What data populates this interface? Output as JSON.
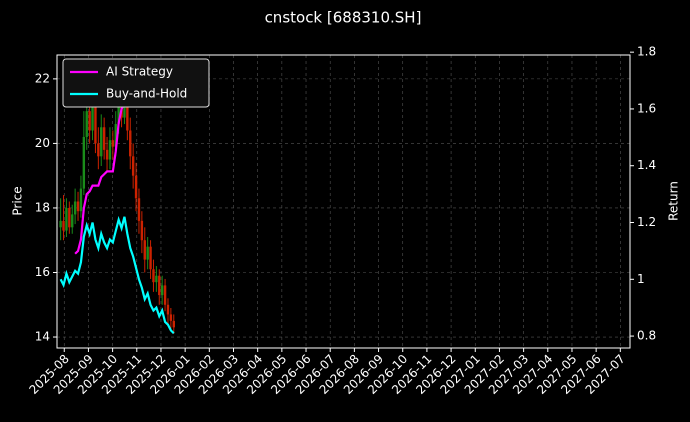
{
  "chart_data": {
    "type": "candlestick",
    "title": "cnstock [688310.SH]",
    "ylabel": "Price",
    "y2label": "Return",
    "x": [
      -0.15,
      -0.03,
      0.09,
      0.21,
      0.33,
      0.45,
      0.57,
      0.69,
      0.81,
      0.93,
      1.05,
      1.17,
      1.29,
      1.41,
      1.53,
      1.65,
      1.77,
      1.89,
      2.01,
      2.13,
      2.25,
      2.37,
      2.49,
      2.61,
      2.73,
      2.85,
      2.97,
      3.09,
      3.21,
      3.33,
      3.45,
      3.57,
      3.69,
      3.81,
      3.93,
      4.05,
      4.17,
      4.29,
      4.41,
      4.53
    ],
    "open": [
      17.4,
      17.6,
      17.3,
      18.0,
      17.4,
      17.8,
      18.2,
      17.9,
      18.6,
      20.2,
      21.0,
      20.4,
      21.2,
      20.0,
      19.6,
      20.5,
      19.8,
      19.5,
      20.1,
      19.9,
      20.6,
      21.3,
      20.8,
      21.5,
      20.4,
      19.6,
      19.0,
      18.3,
      17.6,
      17.0,
      16.4,
      16.8,
      16.1,
      15.7,
      15.9,
      15.3,
      15.6,
      15.0,
      14.7,
      14.5
    ],
    "high": [
      18.3,
      18.4,
      18.3,
      18.2,
      18.1,
      18.6,
      18.5,
      19.0,
      21.0,
      21.9,
      21.5,
      22.0,
      21.6,
      20.5,
      20.9,
      20.8,
      20.2,
      20.5,
      20.4,
      21.0,
      21.8,
      21.6,
      22.1,
      21.8,
      20.8,
      20.0,
      19.4,
      18.6,
      17.9,
      17.4,
      17.1,
      17.0,
      16.4,
      16.2,
      16.1,
      15.9,
      15.8,
      15.2,
      14.9,
      14.7
    ],
    "low": [
      17.0,
      17.0,
      17.1,
      17.2,
      17.2,
      17.5,
      17.6,
      17.7,
      18.4,
      19.8,
      20.0,
      20.1,
      19.7,
      19.2,
      19.3,
      19.5,
      19.1,
      19.2,
      19.5,
      19.6,
      20.3,
      20.5,
      20.6,
      20.1,
      19.2,
      18.6,
      17.9,
      17.2,
      16.6,
      16.0,
      16.1,
      15.8,
      15.4,
      15.4,
      15.0,
      15.0,
      14.8,
      14.4,
      14.2,
      14.1
    ],
    "close": [
      17.6,
      17.3,
      18.0,
      17.4,
      17.8,
      18.2,
      17.9,
      18.6,
      20.2,
      21.0,
      20.4,
      21.2,
      20.0,
      19.6,
      20.5,
      19.8,
      19.5,
      20.1,
      19.9,
      20.6,
      21.3,
      20.8,
      21.5,
      20.4,
      19.6,
      19.0,
      18.3,
      17.6,
      17.0,
      16.4,
      16.8,
      16.1,
      15.7,
      15.9,
      15.3,
      15.6,
      15.0,
      14.7,
      14.5,
      14.3
    ],
    "up_color": "#1a8c1a",
    "down_color": "#cc2200",
    "series": [
      {
        "name": "AI Strategy",
        "color": "#ff00ff",
        "axis": "y2",
        "values": [
          null,
          null,
          null,
          null,
          null,
          1.09,
          1.1,
          1.14,
          1.25,
          1.3,
          1.31,
          1.33,
          1.33,
          1.33,
          1.36,
          1.37,
          1.38,
          1.38,
          1.38,
          1.45,
          1.55,
          1.6,
          1.62,
          1.62,
          1.62,
          1.63,
          1.65,
          1.68,
          1.7,
          1.7,
          1.7,
          null,
          null,
          null,
          null,
          null,
          null,
          null,
          null,
          null
        ]
      },
      {
        "name": "Buy-and-Hold",
        "color": "#00ffff",
        "axis": "y2",
        "values": [
          1.0,
          0.98,
          1.02,
          0.99,
          1.01,
          1.03,
          1.02,
          1.06,
          1.15,
          1.19,
          1.16,
          1.2,
          1.14,
          1.11,
          1.16,
          1.13,
          1.11,
          1.14,
          1.13,
          1.17,
          1.21,
          1.18,
          1.22,
          1.16,
          1.11,
          1.08,
          1.04,
          1.0,
          0.97,
          0.93,
          0.95,
          0.91,
          0.89,
          0.9,
          0.87,
          0.89,
          0.85,
          0.84,
          0.82,
          0.81
        ]
      }
    ],
    "xlim": [
      -0.3,
      23.4
    ],
    "xticks": [
      {
        "value": 0,
        "label": "2025-08"
      },
      {
        "value": 1,
        "label": "2025-09"
      },
      {
        "value": 2,
        "label": "2025-10"
      },
      {
        "value": 3,
        "label": "2025-11"
      },
      {
        "value": 4,
        "label": "2025-12"
      },
      {
        "value": 5,
        "label": "2026-01"
      },
      {
        "value": 6,
        "label": "2026-02"
      },
      {
        "value": 7,
        "label": "2026-03"
      },
      {
        "value": 8,
        "label": "2026-04"
      },
      {
        "value": 9,
        "label": "2026-05"
      },
      {
        "value": 10,
        "label": "2026-06"
      },
      {
        "value": 11,
        "label": "2026-07"
      },
      {
        "value": 12,
        "label": "2026-08"
      },
      {
        "value": 13,
        "label": "2026-09"
      },
      {
        "value": 14,
        "label": "2026-10"
      },
      {
        "value": 15,
        "label": "2026-11"
      },
      {
        "value": 16,
        "label": "2026-12"
      },
      {
        "value": 17,
        "label": "2027-01"
      },
      {
        "value": 18,
        "label": "2027-02"
      },
      {
        "value": 19,
        "label": "2027-03"
      },
      {
        "value": 20,
        "label": "2027-04"
      },
      {
        "value": 21,
        "label": "2027-05"
      },
      {
        "value": 22,
        "label": "2027-06"
      },
      {
        "value": 23,
        "label": "2027-07"
      }
    ],
    "ylim": [
      13.66,
      22.74
    ],
    "yticks": [
      14,
      16,
      18,
      20,
      22
    ],
    "y2lim": [
      0.758,
      1.79
    ],
    "y2ticks": [
      0.8,
      1.0,
      1.2,
      1.4,
      1.6,
      1.8
    ],
    "grid": true,
    "legend": "upper left"
  }
}
